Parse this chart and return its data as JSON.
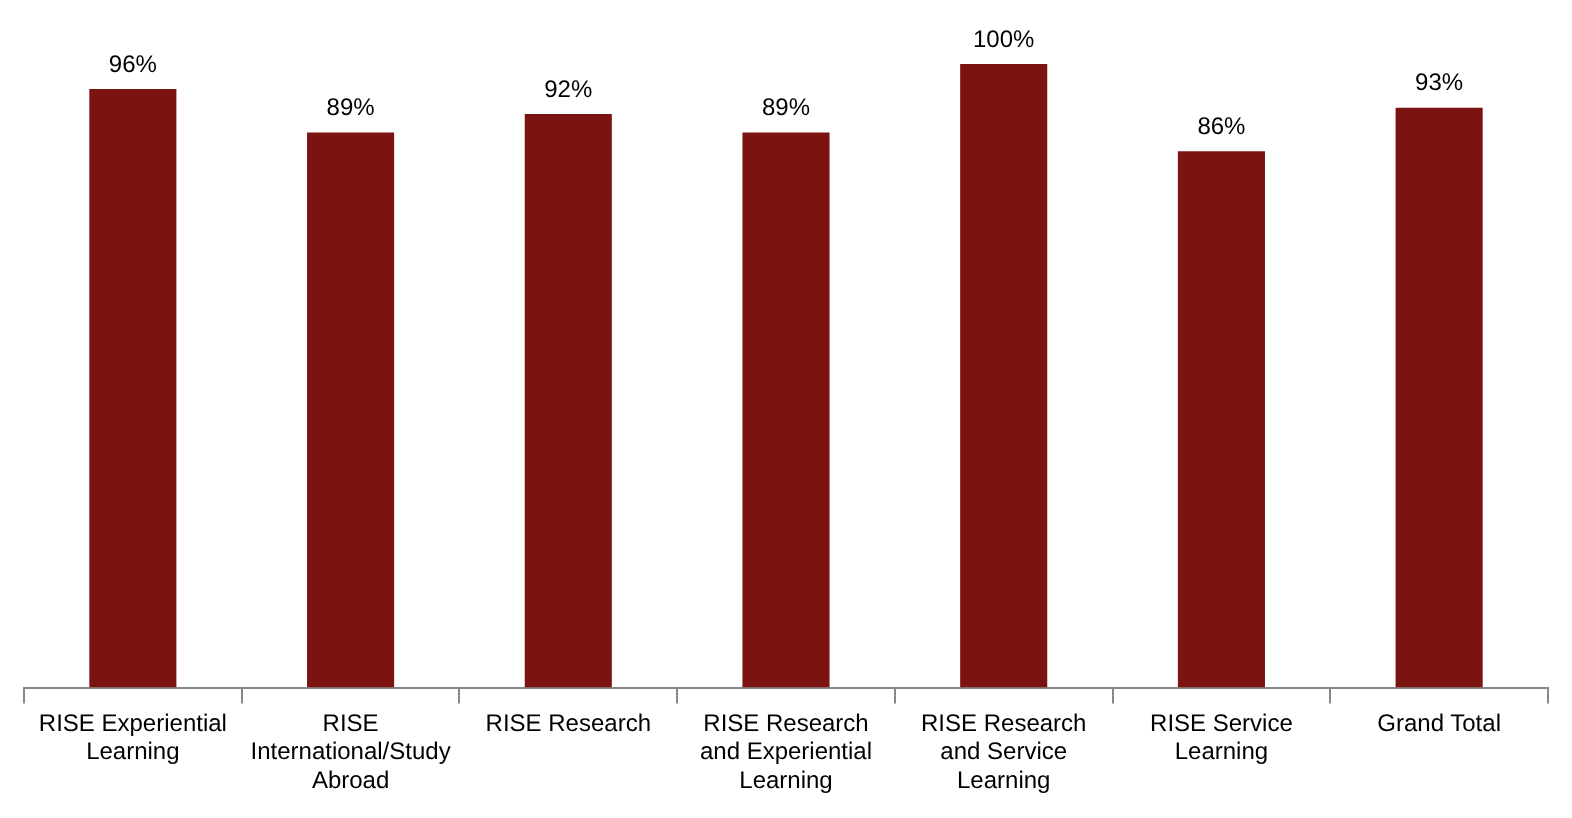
{
  "chart_data": {
    "type": "bar",
    "categories": [
      "RISE Experiential Learning",
      "RISE International/Study Abroad",
      "RISE Research",
      "RISE Research and Experiential Learning",
      "RISE Research and Service Learning",
      "RISE Service Learning",
      "Grand Total"
    ],
    "values": [
      96,
      89,
      92,
      89,
      100,
      86,
      93
    ],
    "value_labels": [
      "96%",
      "89%",
      "92%",
      "89%",
      "100%",
      "86%",
      "93%"
    ],
    "color": "#7b1410",
    "ylim": [
      0,
      100
    ],
    "tick_labels": "x",
    "grid": false,
    "legend": false
  }
}
